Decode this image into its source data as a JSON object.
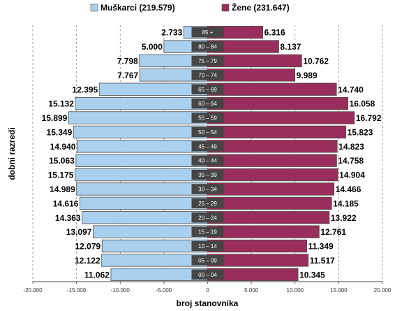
{
  "chart_data": {
    "type": "bar",
    "orientation": "horizontal-population-pyramid",
    "xlabel": "broj stanovnika",
    "ylabel": "dobni razredi",
    "xlim": [
      -20000,
      20000
    ],
    "x_ticks": [
      -20000,
      -15000,
      -10000,
      -5000,
      0,
      5000,
      10000,
      15000,
      20000
    ],
    "x_tick_labels": [
      "-20.000",
      "-15.000",
      "-10.000",
      "-5.000",
      "0",
      "5.000",
      "10.000",
      "15.000",
      "20.000"
    ],
    "categories": [
      "85 +",
      "80 – 84",
      "75 – 79",
      "70 – 74",
      "65 – 69",
      "60 – 64",
      "55 – 59",
      "50 – 54",
      "45 – 49",
      "40 – 44",
      "35 – 39",
      "30 – 34",
      "25 – 29",
      "20 – 24",
      "15 – 19",
      "10 – 14",
      "05 – 09",
      "00 – 04"
    ],
    "legend_position": "top-center",
    "grid": "vertical-dashed",
    "series": [
      {
        "name": "Muškarci (219.579)",
        "color": "#a9d0ee",
        "values": [
          2733,
          5000,
          7798,
          7767,
          12395,
          15132,
          15899,
          15349,
          14940,
          15063,
          15175,
          14989,
          14616,
          14363,
          13097,
          12079,
          12122,
          11062
        ],
        "value_labels": [
          "2.733",
          "5.000",
          "7.798",
          "7.767",
          "12.395",
          "15.132",
          "15.899",
          "15.349",
          "14.940",
          "15.063",
          "15.175",
          "14.989",
          "14.616",
          "14.363",
          "13.097",
          "12.079",
          "12.122",
          "11.062"
        ]
      },
      {
        "name": "Žene (231.647)",
        "color": "#992e5c",
        "values": [
          6316,
          8137,
          10762,
          9989,
          14740,
          16058,
          16792,
          15823,
          14823,
          14758,
          14904,
          14466,
          14185,
          13922,
          12761,
          11349,
          11517,
          10345
        ],
        "value_labels": [
          "6.316",
          "8.137",
          "10.762",
          "9.989",
          "14.740",
          "16.058",
          "16.792",
          "15.823",
          "14.823",
          "14.758",
          "14.904",
          "14.466",
          "14.185",
          "13.922",
          "12.761",
          "11.349",
          "11.517",
          "10.345"
        ]
      }
    ]
  }
}
